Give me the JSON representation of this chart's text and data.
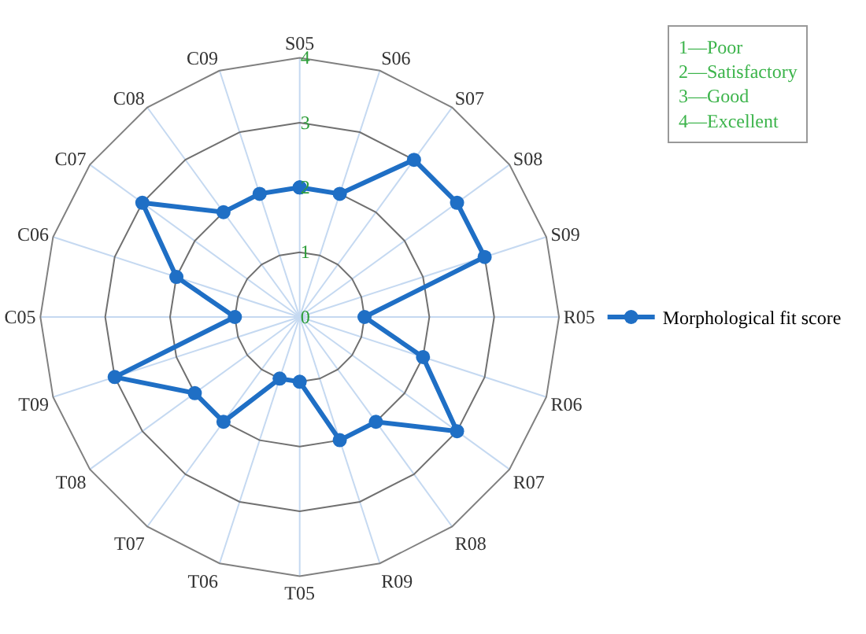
{
  "chart_data": {
    "type": "radar",
    "categories": [
      "S05",
      "S06",
      "S07",
      "S08",
      "S09",
      "R05",
      "R06",
      "R07",
      "R08",
      "R09",
      "T05",
      "T06",
      "T07",
      "T08",
      "T09",
      "C05",
      "C06",
      "C07",
      "C08",
      "C09"
    ],
    "series": [
      {
        "name": "Morphological fit score",
        "color": "#1f6fc5",
        "values": [
          2,
          2,
          3,
          3,
          3,
          1,
          2,
          3,
          2,
          2,
          1,
          1,
          2,
          2,
          3,
          1,
          2,
          3,
          2,
          2
        ]
      }
    ],
    "ylim": [
      0,
      4
    ],
    "yticks": [
      0,
      1,
      2,
      3,
      4
    ],
    "annotations": [
      "1—Poor",
      "2—Satisfactory",
      "3—Good",
      "4—Excellent"
    ],
    "legend": "right",
    "marker": "circle",
    "line_style": "solid",
    "grid": true
  }
}
